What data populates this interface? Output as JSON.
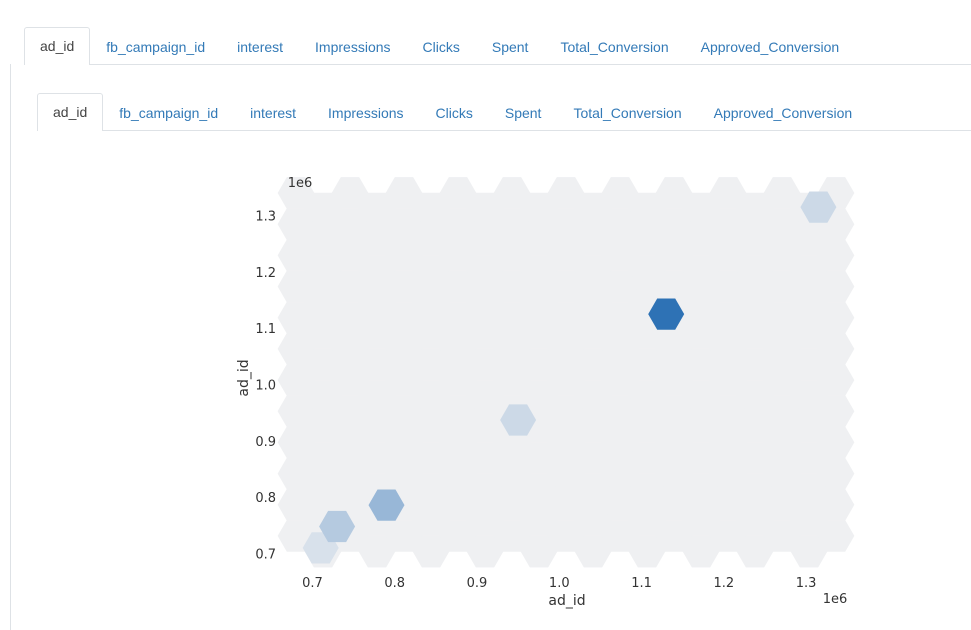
{
  "outer_tabs": [
    {
      "label": "ad_id",
      "active": true
    },
    {
      "label": "fb_campaign_id",
      "active": false
    },
    {
      "label": "interest",
      "active": false
    },
    {
      "label": "Impressions",
      "active": false
    },
    {
      "label": "Clicks",
      "active": false
    },
    {
      "label": "Spent",
      "active": false
    },
    {
      "label": "Total_Conversion",
      "active": false
    },
    {
      "label": "Approved_Conversion",
      "active": false
    }
  ],
  "inner_tabs": [
    {
      "label": "ad_id",
      "active": true
    },
    {
      "label": "fb_campaign_id",
      "active": false
    },
    {
      "label": "interest",
      "active": false
    },
    {
      "label": "Impressions",
      "active": false
    },
    {
      "label": "Clicks",
      "active": false
    },
    {
      "label": "Spent",
      "active": false
    },
    {
      "label": "Total_Conversion",
      "active": false
    },
    {
      "label": "Approved_Conversion",
      "active": false
    }
  ],
  "chart_data": {
    "type": "hexbin",
    "xlabel": "ad_id",
    "ylabel": "ad_id",
    "x_offset_label": "1e6",
    "y_offset_label": "1e6",
    "xlim": [
      0.68,
      1.34
    ],
    "ylim": [
      0.685,
      1.34
    ],
    "x_ticks": [
      0.7,
      0.8,
      0.9,
      1.0,
      1.1,
      1.2,
      1.3
    ],
    "x_tick_labels": [
      "0.7",
      "0.8",
      "0.9",
      "1.0",
      "1.1",
      "1.2",
      "1.3"
    ],
    "y_ticks": [
      0.7,
      0.8,
      0.9,
      1.0,
      1.1,
      1.2,
      1.3
    ],
    "y_tick_labels": [
      "0.7",
      "0.8",
      "0.9",
      "1.0",
      "1.1",
      "1.2",
      "1.3"
    ],
    "background_color": "#eff0f2",
    "colormap": [
      "#eff0f2",
      "#2e72b5"
    ],
    "hexbins": [
      {
        "x": 0.71,
        "y": 0.71,
        "intensity": 0.12
      },
      {
        "x": 0.73,
        "y": 0.748,
        "intensity": 0.3
      },
      {
        "x": 0.79,
        "y": 0.786,
        "intensity": 0.45
      },
      {
        "x": 0.95,
        "y": 0.937,
        "intensity": 0.18
      },
      {
        "x": 1.13,
        "y": 1.125,
        "intensity": 1.0
      },
      {
        "x": 1.315,
        "y": 1.315,
        "intensity": 0.18
      }
    ]
  }
}
